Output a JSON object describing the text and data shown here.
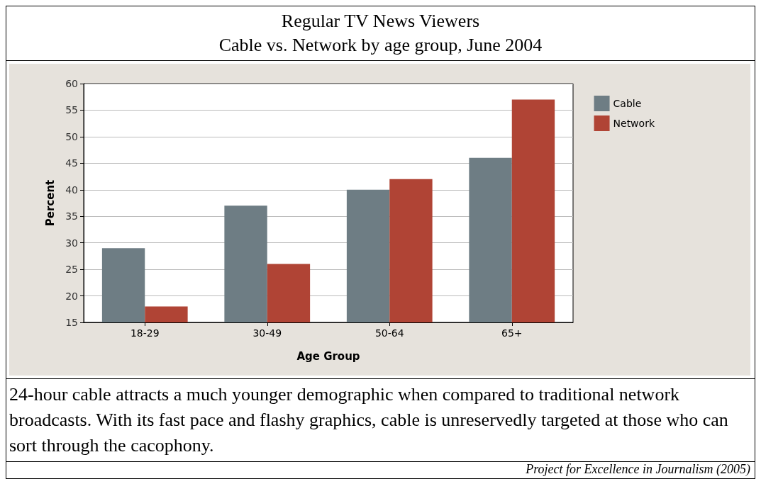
{
  "chart_data": {
    "type": "bar",
    "title": "Regular TV News Viewers",
    "subtitle": "Cable vs. Network by age group, June 2004",
    "xlabel": "Age Group",
    "ylabel": "Percent",
    "categories": [
      "18-29",
      "30-49",
      "50-64",
      "65+"
    ],
    "series": [
      {
        "name": "Cable",
        "color": "#6e7d84",
        "values": [
          29,
          37,
          40,
          46
        ]
      },
      {
        "name": "Network",
        "color": "#b04435",
        "values": [
          18,
          26,
          42,
          57
        ]
      }
    ],
    "ylim": [
      15,
      60
    ],
    "yticks": [
      15,
      20,
      25,
      30,
      35,
      40,
      45,
      50,
      55,
      60
    ],
    "grid": "y",
    "legend": "top right",
    "annotations": [
      "24-hour cable attracts a much younger demographic when compared to traditional network broadcasts. With its fast pace and flashy graphics, cable is unreservedly targeted at those who can sort through the cacophony.",
      "Project for Excellence in Journalism (2005)"
    ]
  }
}
